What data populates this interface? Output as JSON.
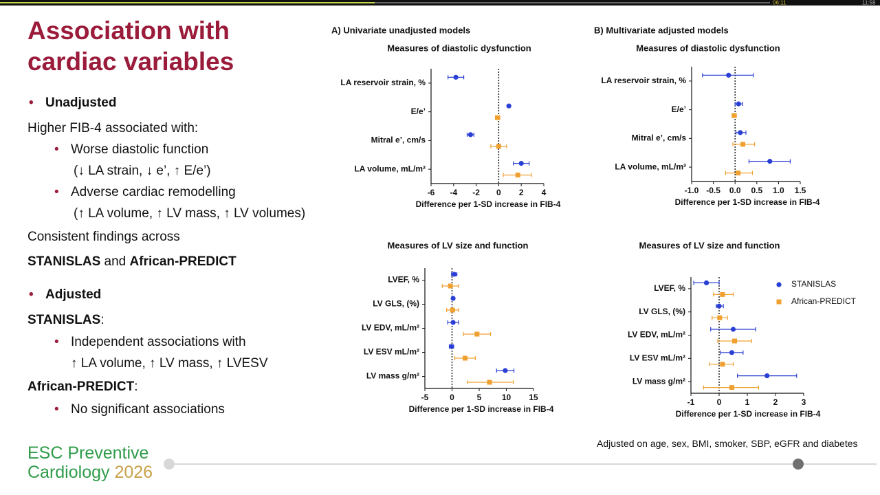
{
  "video": {
    "elapsed": "06:11",
    "duration": "11:58"
  },
  "slide": {
    "title": "Association with cardiac variables",
    "text": [
      "Unadjusted",
      "Higher FIB-4 associated with:",
      "Worse diastolic function",
      "(↓ LA strain, ↓ e’, ↑ E/e’)",
      "Adverse cardiac remodelling",
      "(↑ LA volume, ↑ LV mass, ↑ LV volumes)",
      "Consistent findings across",
      "STANISLAS",
      " and ",
      "African-PREDICT",
      "Adjusted",
      "STANISLAS",
      ":",
      "Independent associations with",
      "↑ LA volume, ↑ LV mass, ↑ LVESV",
      "African-PREDICT",
      ":",
      "No significant associations"
    ],
    "footnote": "Adjusted on age, sex, BMI, smoker, SBP, eGFR and diabetes",
    "logo": {
      "line1": "ESC Preventive",
      "line2": "Cardiology",
      "year": "2026"
    }
  },
  "chart_data": [
    {
      "type": "forest",
      "panel": "A) Univariate unadjusted models",
      "title": "Measures of diastolic dysfunction",
      "categories": [
        "LA reservoir strain, %",
        "E/e’",
        "Mitral e’, cm/s",
        "LA volume, mL/m²"
      ],
      "series": [
        {
          "name": "STANISLAS",
          "color": "#2a3fd4",
          "marker": "circle",
          "values": [
            -3.8,
            0.9,
            -2.5,
            2.0
          ],
          "ci_low": [
            -4.5,
            0.8,
            -2.8,
            1.3
          ],
          "ci_high": [
            -3.1,
            1.0,
            -2.2,
            2.7
          ]
        },
        {
          "name": "African-PREDICT",
          "color": "#f0a030",
          "marker": "square",
          "values": [
            null,
            -0.1,
            0.0,
            1.7
          ],
          "ci_low": [
            null,
            -0.3,
            -0.7,
            0.4
          ],
          "ci_high": [
            null,
            0.1,
            0.7,
            2.9
          ]
        }
      ],
      "xlabel": "Difference per 1-SD increase in FIB-4",
      "xlim": [
        -6,
        4
      ],
      "xticks": [
        -6,
        -4,
        -2,
        0,
        2,
        4
      ]
    },
    {
      "type": "forest",
      "panel": "B) Multivariate adjusted models",
      "title": "Measures of diastolic dysfunction",
      "categories": [
        "LA reservoir strain, %",
        "E/e’",
        "Mitral e’, cm/s",
        "LA volume, mL/m²"
      ],
      "series": [
        {
          "name": "STANISLAS",
          "color": "#2a3fd4",
          "marker": "circle",
          "values": [
            -0.15,
            0.08,
            0.12,
            0.8
          ],
          "ci_low": [
            -0.75,
            0.0,
            0.02,
            0.32
          ],
          "ci_high": [
            0.42,
            0.17,
            0.25,
            1.27
          ]
        },
        {
          "name": "African-PREDICT",
          "color": "#f0a030",
          "marker": "square",
          "values": [
            null,
            -0.02,
            0.18,
            0.07
          ],
          "ci_low": [
            null,
            -0.07,
            -0.05,
            -0.22
          ],
          "ci_high": [
            null,
            0.03,
            0.45,
            0.4
          ]
        }
      ],
      "xlabel": "Difference per 1-SD increase in FIB-4",
      "xlim": [
        -1,
        1.5
      ],
      "xticks": [
        {
          "value": -1,
          "label": "-1.0"
        },
        -0.5,
        {
          "value": 0,
          "label": "0.0"
        },
        0.5,
        {
          "value": 1,
          "label": "1.0"
        },
        1.5
      ]
    },
    {
      "type": "forest",
      "title": "Measures of LV size and function",
      "categories": [
        "LVEF, %",
        "LV GLS, (%)",
        "LV EDV, mL/m²",
        "LV ESV mL/m²",
        "LV mass g/m²"
      ],
      "series": [
        {
          "name": "STANISLAS",
          "color": "#2a3fd4",
          "marker": "circle",
          "values": [
            0.4,
            0.2,
            0.2,
            -0.1,
            9.8
          ],
          "ci_low": [
            -0.1,
            0.0,
            -0.8,
            -0.5,
            8.2
          ],
          "ci_high": [
            0.9,
            0.4,
            1.2,
            0.3,
            11.4
          ]
        },
        {
          "name": "African-PREDICT",
          "color": "#f0a030",
          "marker": "square",
          "values": [
            -0.3,
            0.1,
            4.6,
            2.4,
            6.9
          ],
          "ci_low": [
            -1.8,
            -1.0,
            2.1,
            0.5,
            2.8
          ],
          "ci_high": [
            1.2,
            1.2,
            7.1,
            4.3,
            11.3
          ]
        }
      ],
      "xlabel": "Difference per 1-SD increase in FIB-4",
      "xlim": [
        -5,
        15
      ],
      "xticks": [
        -5,
        0,
        5,
        10,
        15
      ]
    },
    {
      "type": "forest",
      "title": "Measures of LV size and function",
      "categories": [
        "LVEF, %",
        "LV GLS, (%)",
        "LV EDV, mL/m²",
        "LV ESV mL/m²",
        "LV mass g/m²"
      ],
      "series": [
        {
          "name": "STANISLAS",
          "color": "#2a3fd4",
          "marker": "circle",
          "values": [
            -0.45,
            0.0,
            0.5,
            0.45,
            1.7
          ],
          "ci_low": [
            -0.9,
            -0.1,
            -0.3,
            0.05,
            0.65
          ],
          "ci_high": [
            0.0,
            0.15,
            1.3,
            0.85,
            2.75
          ]
        },
        {
          "name": "African-PREDICT",
          "color": "#f0a030",
          "marker": "square",
          "values": [
            0.12,
            0.02,
            0.55,
            0.12,
            0.45
          ],
          "ci_low": [
            -0.2,
            -0.25,
            -0.05,
            -0.35,
            -0.55
          ],
          "ci_high": [
            0.5,
            0.3,
            1.15,
            0.5,
            1.4
          ]
        }
      ],
      "xlabel": "Difference per 1-SD increase in FIB-4",
      "xlim": [
        -1,
        3
      ],
      "xticks": [
        -1,
        0,
        1,
        2,
        3
      ],
      "legend": "upper right"
    }
  ]
}
